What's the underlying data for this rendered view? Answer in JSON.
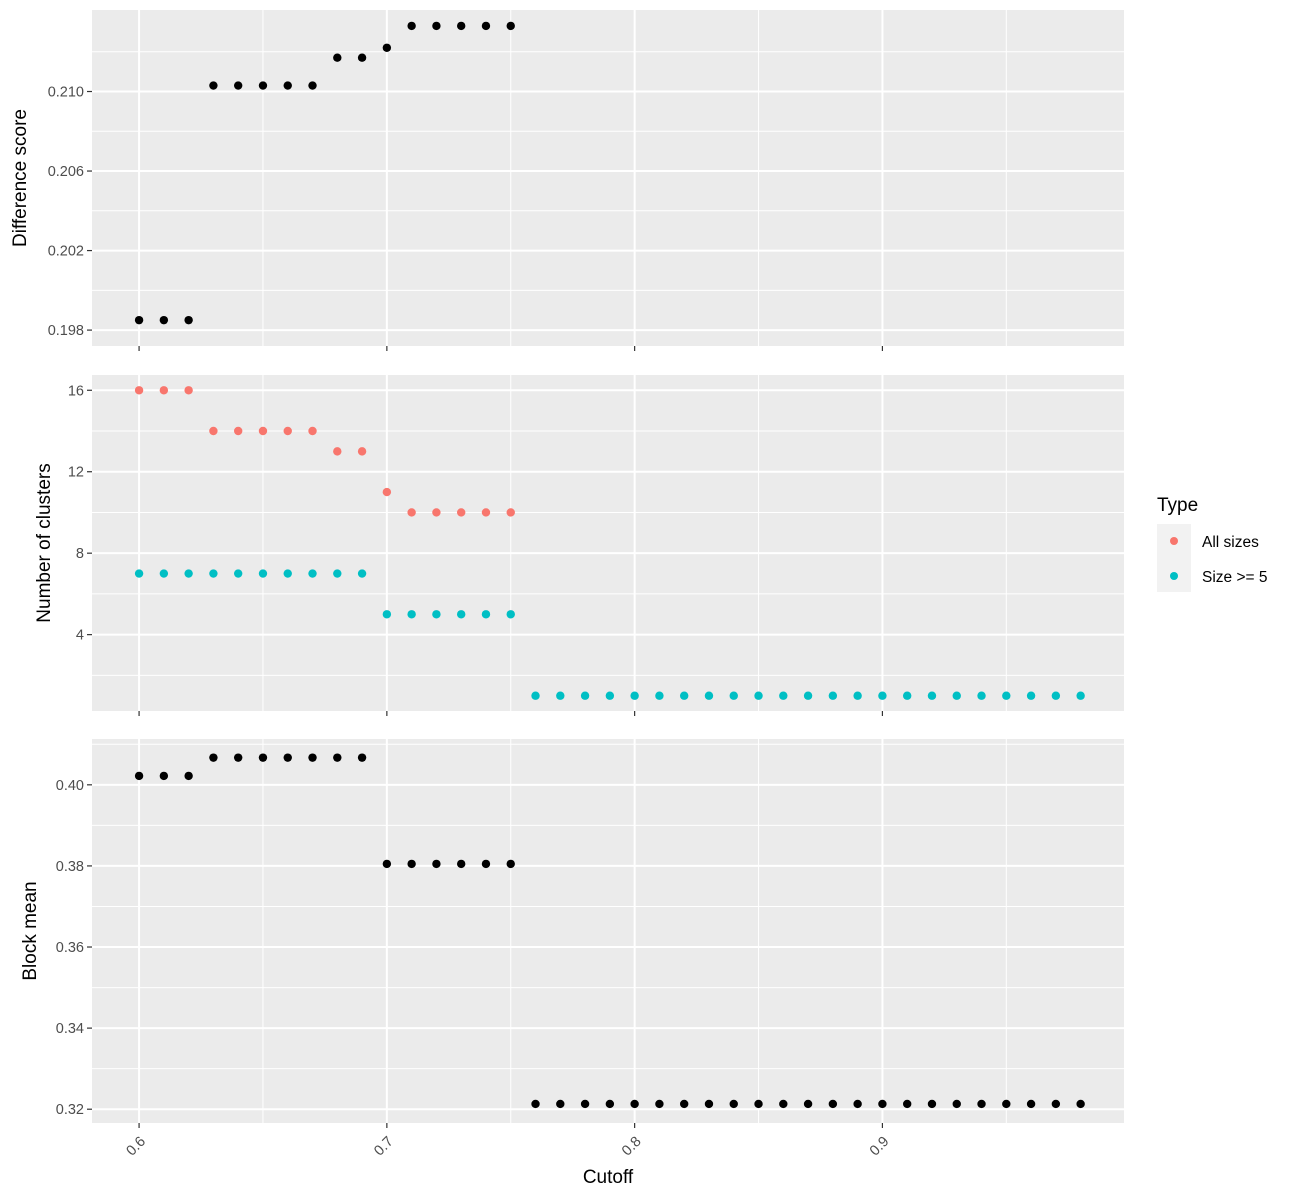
{
  "chart_data": {
    "type": "scatter",
    "xlabel": "Cutoff",
    "x_ticks": [
      0.6,
      0.7,
      0.8,
      0.9
    ],
    "x_tick_labels": [
      "0.6",
      "0.7",
      "0.8",
      "0.9"
    ],
    "xlim": [
      0.581,
      0.9975
    ],
    "legend": {
      "title": "Type",
      "placement": "right",
      "entries": [
        {
          "label": "All sizes",
          "color": "#F8766D"
        },
        {
          "label": "Size >= 5",
          "color": "#00BFC4"
        }
      ]
    },
    "panels": [
      {
        "ylabel": "Difference score",
        "ylim": [
          0.1972,
          0.2141
        ],
        "y_ticks": [
          0.198,
          0.202,
          0.206,
          0.21
        ],
        "y_tick_labels": [
          "0.198",
          "0.202",
          "0.206",
          "0.210"
        ],
        "series": [
          {
            "color": "#000000",
            "x": [
              0.6,
              0.61,
              0.62,
              0.63,
              0.64,
              0.65,
              0.66,
              0.67,
              0.68,
              0.69,
              0.7,
              0.71,
              0.72,
              0.73,
              0.74,
              0.75
            ],
            "y": [
              0.1985,
              0.1985,
              0.1985,
              0.2103,
              0.2103,
              0.2103,
              0.2103,
              0.2103,
              0.2117,
              0.2117,
              0.2122,
              0.2133,
              0.2133,
              0.2133,
              0.2133,
              0.2133
            ]
          }
        ]
      },
      {
        "ylabel": "Number of clusters",
        "ylim": [
          0.25,
          16.75
        ],
        "y_ticks": [
          4,
          8,
          12,
          16
        ],
        "y_tick_labels": [
          "4",
          "8",
          "12",
          "16"
        ],
        "series": [
          {
            "name": "All sizes",
            "color": "#F8766D",
            "x": [
              0.6,
              0.61,
              0.62,
              0.63,
              0.64,
              0.65,
              0.66,
              0.67,
              0.68,
              0.69,
              0.7,
              0.71,
              0.72,
              0.73,
              0.74,
              0.75
            ],
            "y": [
              16,
              16,
              16,
              14,
              14,
              14,
              14,
              14,
              13,
              13,
              11,
              10,
              10,
              10,
              10,
              10
            ]
          },
          {
            "name": "Size >= 5",
            "color": "#00BFC4",
            "x": [
              0.6,
              0.61,
              0.62,
              0.63,
              0.64,
              0.65,
              0.66,
              0.67,
              0.68,
              0.69,
              0.7,
              0.71,
              0.72,
              0.73,
              0.74,
              0.75,
              0.76,
              0.77,
              0.78,
              0.79,
              0.8,
              0.81,
              0.82,
              0.83,
              0.84,
              0.85,
              0.86,
              0.87,
              0.88,
              0.89,
              0.9,
              0.91,
              0.92,
              0.93,
              0.94,
              0.95,
              0.96,
              0.97,
              0.98
            ],
            "y": [
              7,
              7,
              7,
              7,
              7,
              7,
              7,
              7,
              7,
              7,
              5,
              5,
              5,
              5,
              5,
              5,
              1,
              1,
              1,
              1,
              1,
              1,
              1,
              1,
              1,
              1,
              1,
              1,
              1,
              1,
              1,
              1,
              1,
              1,
              1,
              1,
              1,
              1,
              1
            ]
          }
        ]
      },
      {
        "ylabel": "Block mean",
        "ylim": [
          0.3166,
          0.4113
        ],
        "y_ticks": [
          0.32,
          0.34,
          0.36,
          0.38,
          0.4
        ],
        "y_tick_labels": [
          "0.32",
          "0.34",
          "0.36",
          "0.38",
          "0.40"
        ],
        "series": [
          {
            "color": "#000000",
            "x": [
              0.6,
              0.61,
              0.62,
              0.63,
              0.64,
              0.65,
              0.66,
              0.67,
              0.68,
              0.69,
              0.7,
              0.71,
              0.72,
              0.73,
              0.74,
              0.75,
              0.76,
              0.77,
              0.78,
              0.79,
              0.8,
              0.81,
              0.82,
              0.83,
              0.84,
              0.85,
              0.86,
              0.87,
              0.88,
              0.89,
              0.9,
              0.91,
              0.92,
              0.93,
              0.94,
              0.95,
              0.96,
              0.97,
              0.98
            ],
            "y": [
              0.4022,
              0.4022,
              0.4022,
              0.4067,
              0.4067,
              0.4067,
              0.4067,
              0.4067,
              0.4067,
              0.4067,
              0.3805,
              0.3805,
              0.3805,
              0.3805,
              0.3805,
              0.3805,
              0.3213,
              0.3213,
              0.3213,
              0.3213,
              0.3213,
              0.3213,
              0.3213,
              0.3213,
              0.3213,
              0.3213,
              0.3213,
              0.3213,
              0.3213,
              0.3213,
              0.3213,
              0.3213,
              0.3213,
              0.3213,
              0.3213,
              0.3213,
              0.3213,
              0.3213,
              0.3213
            ]
          }
        ]
      }
    ]
  }
}
